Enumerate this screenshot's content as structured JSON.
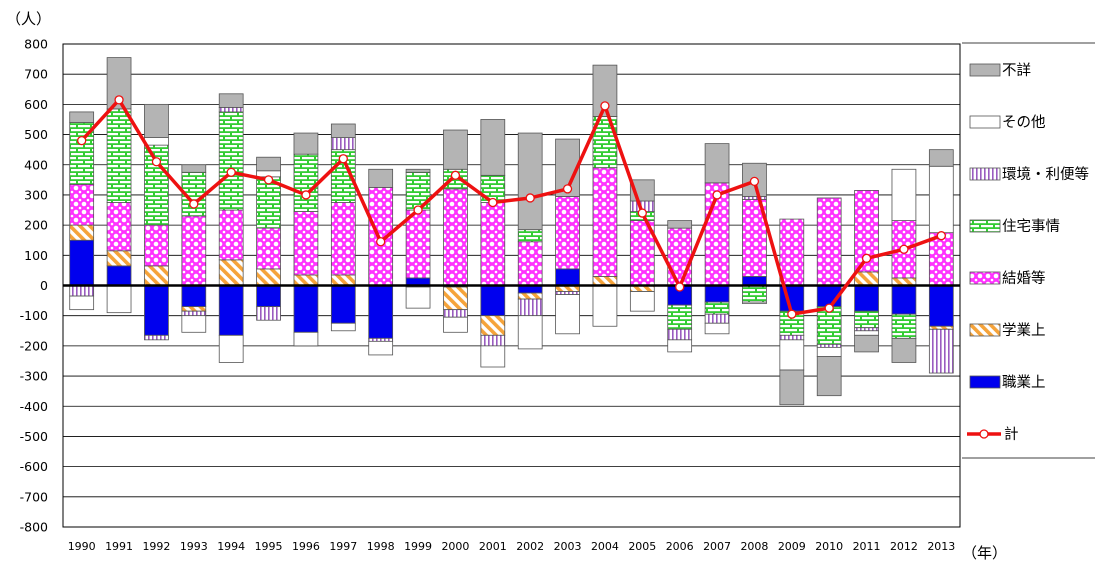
{
  "chart_data": {
    "type": "bar",
    "stacked": true,
    "y_unit": "（人）",
    "x_unit": "（年）",
    "ylim": [
      -800,
      800
    ],
    "y_ticks": [
      800,
      700,
      600,
      500,
      400,
      300,
      200,
      100,
      0,
      -100,
      -200,
      -300,
      -400,
      -500,
      -600,
      -700,
      -800
    ],
    "grid": true,
    "legend_position": "right",
    "categories": [
      "1990",
      "1991",
      "1992",
      "1993",
      "1994",
      "1995",
      "1996",
      "1997",
      "1998",
      "1999",
      "2000",
      "2001",
      "2002",
      "2003",
      "2004",
      "2005",
      "2006",
      "2007",
      "2008",
      "2009",
      "2010",
      "2011",
      "2012",
      "2013"
    ],
    "series": [
      {
        "name": "職業上",
        "color": "#0000ee",
        "pattern": "solid",
        "values": [
          150,
          65,
          -165,
          -70,
          -165,
          -70,
          -155,
          -125,
          -175,
          25,
          -5,
          -100,
          -25,
          55,
          0,
          0,
          -65,
          -55,
          30,
          -85,
          -70,
          -85,
          -95,
          -135
        ]
      },
      {
        "name": "学業上",
        "color": "#f5a33a",
        "pattern": "diag",
        "values": [
          50,
          50,
          65,
          -15,
          85,
          55,
          35,
          35,
          0,
          0,
          -75,
          -65,
          -20,
          -20,
          30,
          -20,
          0,
          0,
          0,
          0,
          0,
          45,
          25,
          -10
        ]
      },
      {
        "name": "結婚等",
        "color": "#ff33ff",
        "pattern": "dots",
        "values": [
          135,
          160,
          135,
          230,
          165,
          135,
          210,
          240,
          325,
          225,
          320,
          275,
          145,
          240,
          360,
          215,
          190,
          340,
          255,
          220,
          290,
          270,
          190,
          175
        ]
      },
      {
        "name": "住宅事情",
        "color": "#33cc33",
        "pattern": "brick",
        "values": [
          205,
          310,
          265,
          145,
          325,
          170,
          190,
          175,
          0,
          125,
          65,
          90,
          40,
          0,
          170,
          30,
          -80,
          -40,
          -55,
          -80,
          -125,
          -55,
          -80,
          0
        ]
      },
      {
        "name": "環境・利便等",
        "color": "#b07ac8",
        "pattern": "vlines",
        "values": [
          -35,
          0,
          -15,
          -15,
          15,
          -45,
          0,
          40,
          -10,
          -5,
          -25,
          -35,
          -55,
          -10,
          0,
          35,
          -35,
          -30,
          10,
          -15,
          -10,
          -10,
          0,
          -145
        ]
      },
      {
        "name": "その他",
        "color": "#ffffff",
        "pattern": "solid",
        "values": [
          -45,
          -90,
          25,
          -55,
          -90,
          20,
          -45,
          -25,
          -45,
          -70,
          -50,
          -70,
          -110,
          -130,
          -135,
          -65,
          -40,
          -35,
          -5,
          -100,
          -30,
          -15,
          170,
          220
        ]
      },
      {
        "name": "不詳",
        "color": "#b4b4b4",
        "pattern": "solid",
        "values": [
          35,
          170,
          110,
          25,
          45,
          45,
          70,
          45,
          60,
          10,
          130,
          185,
          320,
          190,
          170,
          70,
          25,
          130,
          110,
          -115,
          -130,
          -55,
          -80,
          55
        ]
      },
      {
        "name": "計",
        "color": "#ee1111",
        "type": "line",
        "marker": "circle",
        "values": [
          480,
          615,
          410,
          270,
          375,
          350,
          300,
          420,
          145,
          250,
          365,
          275,
          290,
          320,
          595,
          240,
          -5,
          300,
          345,
          -95,
          -75,
          90,
          120,
          165
        ]
      }
    ]
  }
}
